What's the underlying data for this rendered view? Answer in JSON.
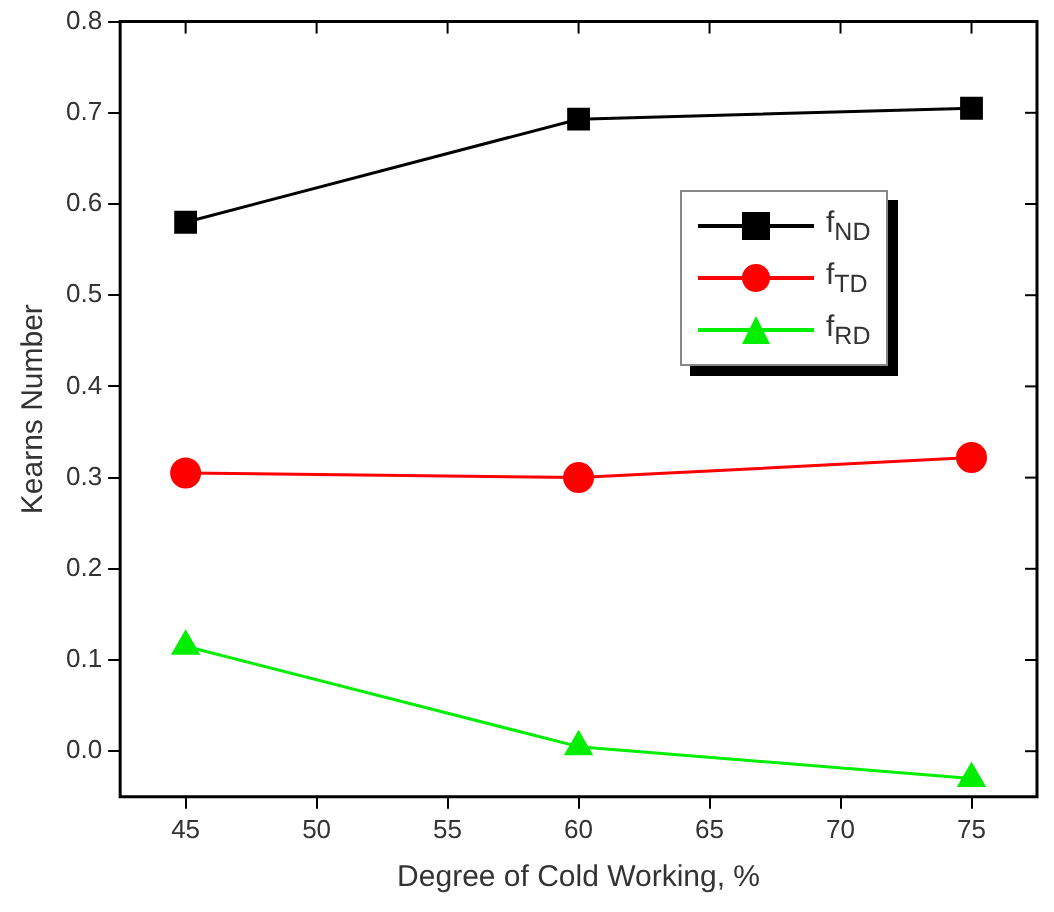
{
  "chart_data": {
    "type": "line",
    "xlabel": "Degree of Cold Working, %",
    "ylabel": "Kearns Number",
    "x": [
      45,
      60,
      75
    ],
    "series": [
      {
        "name": "f$_{ND}$",
        "color": "#000000",
        "marker": "square",
        "values": [
          0.58,
          0.693,
          0.705
        ]
      },
      {
        "name": "f$_{TD}$",
        "color": "#ff0000",
        "marker": "circle",
        "values": [
          0.305,
          0.3,
          0.322
        ]
      },
      {
        "name": "f$_{RD}$",
        "color": "#00ee00",
        "marker": "triangle",
        "values": [
          0.115,
          0.005,
          -0.03
        ]
      }
    ],
    "xlim": [
      42.5,
      77.5
    ],
    "xticks": [
      45,
      50,
      55,
      60,
      65,
      70,
      75
    ],
    "ylim": [
      -0.05,
      0.8
    ],
    "yticks": [
      {
        "value": 0,
        "label": "0.0"
      },
      {
        "value": 0.1,
        "label": "0.1"
      },
      {
        "value": 0.2,
        "label": "0.2"
      },
      {
        "value": 0.3,
        "label": "0.3"
      },
      {
        "value": 0.4,
        "label": "0.4"
      },
      {
        "value": 0.5,
        "label": "0.5"
      },
      {
        "value": 0.6,
        "label": "0.6"
      },
      {
        "value": 0.7,
        "label": "0.7"
      },
      {
        "value": 0.8,
        "label": "0.8"
      }
    ],
    "grid": false,
    "legend": "top right",
    "line_style": "solid"
  }
}
